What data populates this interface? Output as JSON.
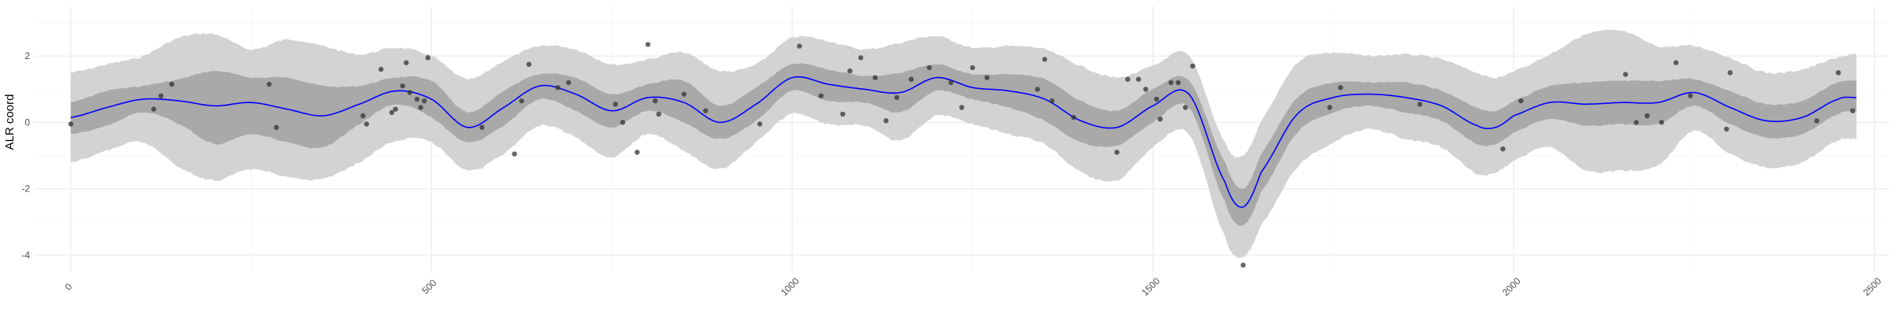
{
  "chart_data": {
    "type": "line",
    "title": "",
    "xlabel": "",
    "ylabel": "ALR coord",
    "xlim": [
      -50,
      2520
    ],
    "ylim": [
      -4.5,
      3.5
    ],
    "x_ticks": [
      0,
      500,
      1000,
      1500,
      2000,
      2500
    ],
    "y_ticks": [
      -4,
      -2,
      0,
      2
    ],
    "x_tick_labels": [
      "0",
      "500",
      "1000",
      "1500",
      "2000",
      "2500"
    ],
    "y_tick_labels": [
      "-4",
      "-2",
      "0",
      "2"
    ],
    "grid": true,
    "legend": "none",
    "colors": {
      "mean_line": "#0000ff",
      "inner_band": "#a9a9a9",
      "outer_band": "#d3d3d3",
      "points": "#333333",
      "grid_major": "#ebebeb",
      "grid_minor": "#f5f5f5"
    },
    "series": [
      {
        "role": "mean",
        "x": [
          0,
          50,
          100,
          150,
          200,
          250,
          300,
          350,
          400,
          450,
          500,
          550,
          600,
          650,
          700,
          750,
          800,
          850,
          900,
          950,
          1000,
          1050,
          1100,
          1150,
          1200,
          1250,
          1300,
          1350,
          1400,
          1450,
          1500,
          1550,
          1600,
          1625,
          1650,
          1700,
          1750,
          1800,
          1850,
          1900,
          1950,
          1975,
          2000,
          2050,
          2100,
          2150,
          2200,
          2250,
          2300,
          2350,
          2400,
          2450,
          2475
        ],
        "y": [
          0.15,
          0.45,
          0.7,
          0.65,
          0.5,
          0.6,
          0.4,
          0.2,
          0.55,
          0.95,
          0.7,
          -0.15,
          0.45,
          1.1,
          0.85,
          0.35,
          0.75,
          0.6,
          0.0,
          0.55,
          1.35,
          1.15,
          1.0,
          0.9,
          1.35,
          1.05,
          0.95,
          0.7,
          0.05,
          -0.15,
          0.5,
          0.85,
          -1.8,
          -2.55,
          -1.5,
          0.25,
          0.75,
          0.85,
          0.75,
          0.5,
          -0.1,
          -0.15,
          0.2,
          0.6,
          0.55,
          0.6,
          0.6,
          0.9,
          0.45,
          0.05,
          0.15,
          0.7,
          0.75
        ]
      },
      {
        "role": "inner_band",
        "x": [
          0,
          50,
          100,
          150,
          200,
          250,
          300,
          350,
          400,
          450,
          500,
          550,
          600,
          650,
          700,
          750,
          800,
          850,
          900,
          950,
          1000,
          1050,
          1100,
          1150,
          1200,
          1250,
          1300,
          1350,
          1400,
          1450,
          1500,
          1550,
          1600,
          1625,
          1650,
          1700,
          1750,
          1800,
          1850,
          1900,
          1950,
          1975,
          2000,
          2050,
          2100,
          2150,
          2200,
          2250,
          2300,
          2350,
          2400,
          2450,
          2475
        ],
        "lower": [
          -0.35,
          -0.1,
          0.3,
          -0.05,
          -0.65,
          -0.35,
          -0.6,
          -0.75,
          -0.05,
          0.55,
          0.15,
          -0.6,
          -0.1,
          0.7,
          0.35,
          -0.15,
          0.35,
          0.0,
          -0.5,
          0.05,
          0.95,
          0.65,
          0.6,
          0.3,
          0.95,
          0.7,
          0.45,
          0.05,
          -0.6,
          -0.7,
          0.0,
          0.45,
          -2.4,
          -3.1,
          -2.1,
          -0.3,
          0.3,
          0.5,
          0.3,
          0.05,
          -0.65,
          -0.65,
          -0.3,
          0.1,
          -0.1,
          -0.05,
          -0.05,
          0.5,
          -0.05,
          -0.45,
          -0.35,
          0.25,
          0.35
        ],
        "upper": [
          0.6,
          0.95,
          1.1,
          1.3,
          1.55,
          1.35,
          1.35,
          1.1,
          1.1,
          1.35,
          1.25,
          0.3,
          0.95,
          1.45,
          1.35,
          0.85,
          1.15,
          1.25,
          0.5,
          1.05,
          1.75,
          1.6,
          1.4,
          1.5,
          1.75,
          1.45,
          1.45,
          1.3,
          0.65,
          0.35,
          1.0,
          1.25,
          -1.2,
          -2.0,
          -0.95,
          0.75,
          1.2,
          1.2,
          1.2,
          0.95,
          0.45,
          0.35,
          0.65,
          1.1,
          1.2,
          1.25,
          1.25,
          1.3,
          0.95,
          0.55,
          0.65,
          1.2,
          1.25
        ]
      },
      {
        "role": "outer_band",
        "x": [
          0,
          50,
          100,
          150,
          200,
          250,
          300,
          350,
          400,
          450,
          500,
          550,
          600,
          650,
          700,
          750,
          800,
          850,
          900,
          950,
          1000,
          1050,
          1100,
          1150,
          1200,
          1250,
          1300,
          1350,
          1400,
          1450,
          1500,
          1550,
          1600,
          1625,
          1650,
          1700,
          1750,
          1800,
          1850,
          1900,
          1950,
          1975,
          2000,
          2050,
          2100,
          2150,
          2200,
          2250,
          2300,
          2350,
          2400,
          2450,
          2475
        ],
        "lower": [
          -1.2,
          -0.85,
          -0.6,
          -1.35,
          -1.75,
          -1.4,
          -1.65,
          -1.7,
          -1.2,
          -0.55,
          -0.6,
          -1.45,
          -0.95,
          -0.1,
          -0.45,
          -1.05,
          -0.35,
          -0.85,
          -1.4,
          -0.6,
          0.25,
          -0.05,
          -0.1,
          -0.55,
          0.2,
          -0.05,
          -0.35,
          -0.65,
          -1.5,
          -1.75,
          -0.75,
          -0.35,
          -3.45,
          -4.05,
          -3.1,
          -1.35,
          -0.6,
          -0.2,
          -0.5,
          -0.75,
          -1.55,
          -1.5,
          -1.15,
          -0.75,
          -1.45,
          -1.45,
          -1.3,
          -0.25,
          -0.95,
          -1.35,
          -1.2,
          -0.55,
          -0.5
        ],
        "upper": [
          1.5,
          1.75,
          2.0,
          2.55,
          2.65,
          2.2,
          2.5,
          2.3,
          2.05,
          2.25,
          2.0,
          1.3,
          1.85,
          2.3,
          2.2,
          1.75,
          1.9,
          2.1,
          1.55,
          1.75,
          2.55,
          2.45,
          2.2,
          2.4,
          2.6,
          2.25,
          2.3,
          2.2,
          1.7,
          1.35,
          1.7,
          2.0,
          -0.6,
          -1.0,
          0.05,
          1.8,
          2.1,
          2.0,
          2.05,
          1.9,
          1.5,
          1.35,
          1.55,
          2.05,
          2.65,
          2.75,
          2.3,
          2.3,
          1.95,
          1.5,
          1.6,
          1.95,
          2.05
        ]
      },
      {
        "role": "observations",
        "x": [
          0,
          115,
          125,
          140,
          275,
          285,
          405,
          410,
          430,
          445,
          450,
          460,
          465,
          470,
          480,
          485,
          490,
          495,
          570,
          615,
          625,
          635,
          675,
          690,
          755,
          765,
          785,
          800,
          810,
          815,
          850,
          880,
          955,
          1010,
          1040,
          1070,
          1080,
          1095,
          1115,
          1130,
          1145,
          1165,
          1190,
          1220,
          1235,
          1250,
          1270,
          1340,
          1350,
          1360,
          1390,
          1450,
          1465,
          1480,
          1490,
          1505,
          1510,
          1525,
          1535,
          1545,
          1555,
          1625,
          1745,
          1760,
          1870,
          1985,
          2010,
          2155,
          2170,
          2185,
          2205,
          2225,
          2245,
          2295,
          2300,
          2420,
          2450,
          2470
        ],
        "y": [
          -0.05,
          0.4,
          0.8,
          1.15,
          1.15,
          -0.15,
          0.2,
          -0.05,
          1.6,
          0.3,
          0.4,
          1.1,
          1.8,
          0.9,
          0.7,
          0.45,
          0.65,
          1.95,
          -0.15,
          -0.95,
          0.65,
          1.75,
          1.05,
          1.2,
          0.55,
          0.0,
          -0.9,
          2.35,
          0.65,
          0.25,
          0.85,
          0.35,
          -0.05,
          2.3,
          0.8,
          0.25,
          1.55,
          1.95,
          1.35,
          0.05,
          0.75,
          1.3,
          1.65,
          1.2,
          0.45,
          1.65,
          1.35,
          1.0,
          1.9,
          0.65,
          0.15,
          -0.9,
          1.3,
          1.3,
          1.0,
          0.7,
          0.1,
          1.2,
          1.2,
          0.45,
          1.7,
          -4.3,
          0.45,
          1.05,
          0.55,
          -0.8,
          0.65,
          1.45,
          0.0,
          0.2,
          0.0,
          1.8,
          0.8,
          -0.2,
          1.5,
          0.05,
          1.5,
          0.35
        ]
      }
    ]
  }
}
